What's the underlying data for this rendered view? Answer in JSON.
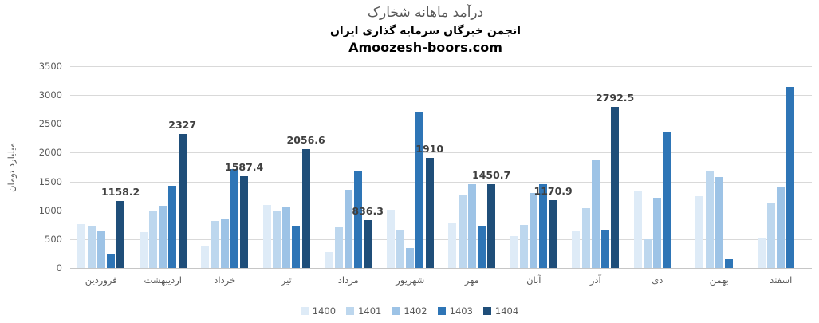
{
  "title": "درآمد ماهانه شخارک",
  "subtitle": "انجمن خبرگان سرمایه گذاری ایران",
  "website": "Amoozesh-boors.com",
  "colors": {
    "grid": "#d9d9d9",
    "axis_line": "#c6c6c6",
    "axis_text": "#595959",
    "title_text": "#595959",
    "data_label_text": "#3f3f3f"
  },
  "chart_data": {
    "type": "bar",
    "title": "درآمد ماهانه شخارک",
    "xlabel": "",
    "ylabel": "میلیارد تومان",
    "ylim": [
      0,
      3500
    ],
    "ytick_step": 500,
    "yticks": [
      0,
      500,
      1000,
      1500,
      2000,
      2500,
      3000,
      3500
    ],
    "grid": true,
    "legend_position": "bottom",
    "categories": [
      "فروردین",
      "اردیبهشت",
      "خرداد",
      "تیر",
      "مرداد",
      "شهریور",
      "مهر",
      "آبان",
      "آذر",
      "دی",
      "بهمن",
      "اسفند"
    ],
    "series": [
      {
        "name": "1400",
        "color": "#deebf7",
        "values": [
          765,
          620,
          385,
          1095,
          280,
          1005,
          790,
          550,
          635,
          1345,
          1250,
          530
        ]
      },
      {
        "name": "1401",
        "color": "#bdd7ee",
        "values": [
          730,
          980,
          820,
          980,
          705,
          670,
          1265,
          750,
          1035,
          505,
          1690,
          1135
        ]
      },
      {
        "name": "1402",
        "color": "#9dc3e6",
        "values": [
          640,
          1075,
          855,
          1050,
          1360,
          345,
          1450,
          1300,
          1865,
          1215,
          1575,
          1410
        ]
      },
      {
        "name": "1403",
        "color": "#2e75b6",
        "values": [
          235,
          1430,
          1720,
          735,
          1675,
          2710,
          715,
          1455,
          670,
          2370,
          150,
          3135
        ]
      },
      {
        "name": "1404",
        "color": "#1f4e79",
        "show_labels": true,
        "values": [
          1158.2,
          2327,
          1587.4,
          2056.6,
          836.3,
          1910,
          1450.7,
          1170.9,
          2792.5,
          null,
          null,
          null
        ],
        "labels": [
          "1158.2",
          "2327",
          "1587.4",
          "2056.6",
          "836.3",
          "1910",
          "1450.7",
          "1170.9",
          "2792.5",
          null,
          null,
          null
        ]
      }
    ]
  }
}
